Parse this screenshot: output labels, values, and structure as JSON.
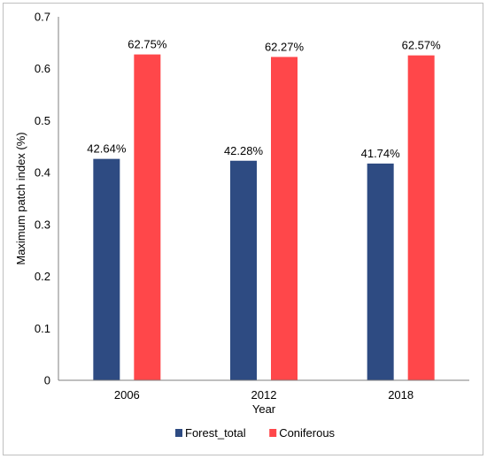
{
  "chart_data": {
    "type": "bar",
    "xlabel": "Year",
    "ylabel": "Maximum patch index (%)",
    "categories": [
      "2006",
      "2012",
      "2018"
    ],
    "ylim": [
      0,
      0.7
    ],
    "yticks": [
      "0",
      "0.1",
      "0.2",
      "0.3",
      "0.4",
      "0.5",
      "0.6",
      "0.7"
    ],
    "grid": false,
    "legend_position": "bottom",
    "series": [
      {
        "name": "Forest_total",
        "color": "#2e4b82",
        "values": [
          0.4264,
          0.4228,
          0.4174
        ],
        "labels": [
          "42.64%",
          "42.28%",
          "41.74%"
        ]
      },
      {
        "name": "Coniferous",
        "color": "#ff474a",
        "values": [
          0.6275,
          0.6227,
          0.6257
        ],
        "labels": [
          "62.75%",
          "62.27%",
          "62.57%"
        ]
      }
    ]
  }
}
